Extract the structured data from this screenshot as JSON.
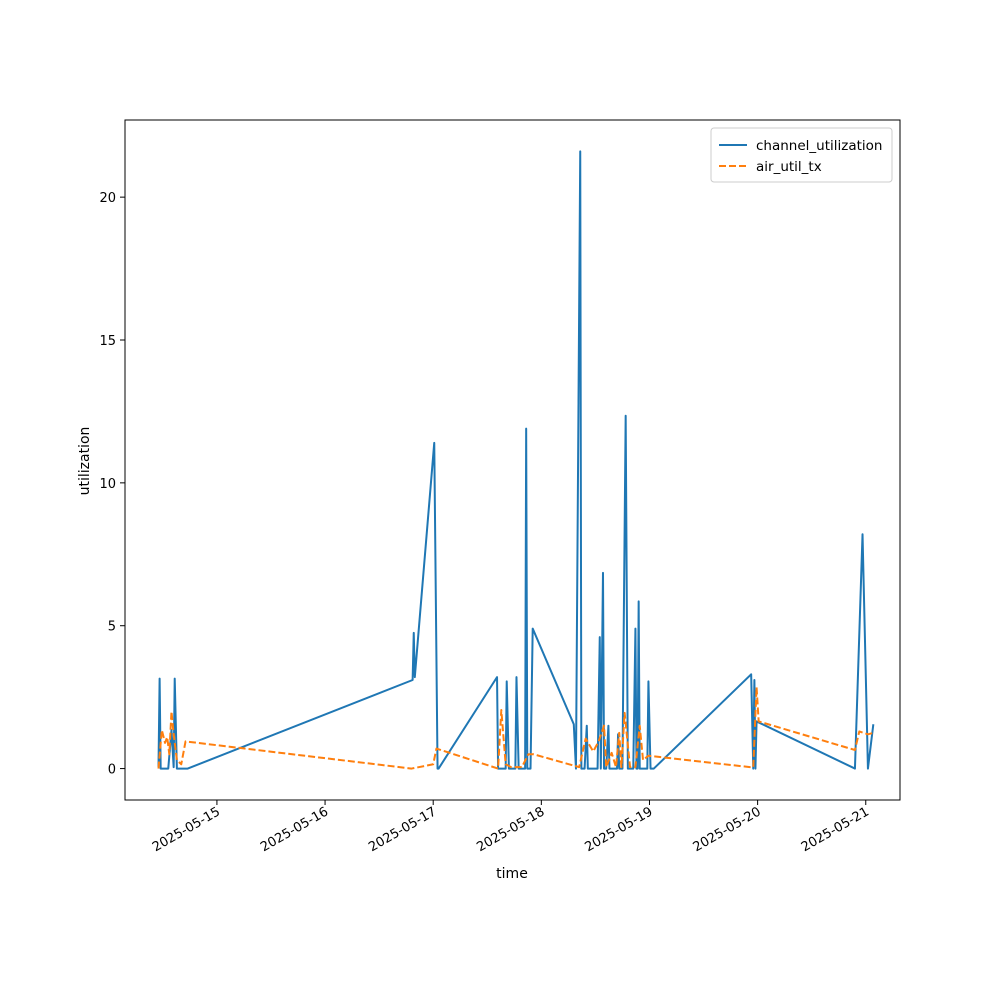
{
  "chart_data": {
    "type": "line",
    "title": "",
    "xlabel": "time",
    "ylabel": "utilization",
    "x_axis_type": "date",
    "xlim": [
      "2025-05-14 03:36",
      "2025-05-21 07:36"
    ],
    "ylim": [
      -1.1,
      22.7
    ],
    "x_ticks": [
      "2025-05-15",
      "2025-05-16",
      "2025-05-17",
      "2025-05-18",
      "2025-05-19",
      "2025-05-20",
      "2025-05-21"
    ],
    "y_ticks": [
      0,
      5,
      10,
      15,
      20
    ],
    "grid": false,
    "legend_position": "top-right",
    "series": [
      {
        "name": "channel_utilization",
        "color": "#1f77b4",
        "style": "solid",
        "points": [
          [
            "2025-05-14 11:02",
            0.05
          ],
          [
            "2025-05-14 11:17",
            3.15
          ],
          [
            "2025-05-14 11:31",
            0.0
          ],
          [
            "2025-05-14 13:12",
            0.0
          ],
          [
            "2025-05-14 13:55",
            1.35
          ],
          [
            "2025-05-14 14:24",
            0.05
          ],
          [
            "2025-05-14 14:38",
            3.15
          ],
          [
            "2025-05-14 15:07",
            0.0
          ],
          [
            "2025-05-14 17:31",
            0.0
          ],
          [
            "2025-05-16 19:26",
            3.1
          ],
          [
            "2025-05-16 19:41",
            4.75
          ],
          [
            "2025-05-16 19:55",
            3.2
          ],
          [
            "2025-05-17 00:14",
            11.4
          ],
          [
            "2025-05-17 00:58",
            0.0
          ],
          [
            "2025-05-17 01:12",
            0.0
          ],
          [
            "2025-05-17 14:10",
            3.2
          ],
          [
            "2025-05-17 14:24",
            0.0
          ],
          [
            "2025-05-17 16:05",
            0.0
          ],
          [
            "2025-05-17 16:19",
            3.05
          ],
          [
            "2025-05-17 16:48",
            0.0
          ],
          [
            "2025-05-17 18:14",
            0.0
          ],
          [
            "2025-05-17 18:29",
            3.2
          ],
          [
            "2025-05-17 18:58",
            0.0
          ],
          [
            "2025-05-17 20:24",
            0.0
          ],
          [
            "2025-05-17 20:38",
            11.9
          ],
          [
            "2025-05-17 20:53",
            0.0
          ],
          [
            "2025-05-17 21:36",
            0.0
          ],
          [
            "2025-05-17 22:05",
            4.9
          ],
          [
            "2025-05-18 07:12",
            1.55
          ],
          [
            "2025-05-18 07:41",
            0.0
          ],
          [
            "2025-05-18 08:38",
            21.6
          ],
          [
            "2025-05-18 08:53",
            0.0
          ],
          [
            "2025-05-18 09:36",
            0.0
          ],
          [
            "2025-05-18 10:05",
            1.5
          ],
          [
            "2025-05-18 10:19",
            0.0
          ],
          [
            "2025-05-18 12:29",
            0.0
          ],
          [
            "2025-05-18 12:58",
            4.6
          ],
          [
            "2025-05-18 13:12",
            0.0
          ],
          [
            "2025-05-18 13:41",
            6.85
          ],
          [
            "2025-05-18 13:55",
            0.0
          ],
          [
            "2025-05-18 14:24",
            0.0
          ],
          [
            "2025-05-18 14:53",
            1.5
          ],
          [
            "2025-05-18 15:07",
            0.0
          ],
          [
            "2025-05-18 16:48",
            0.0
          ],
          [
            "2025-05-18 17:02",
            1.2
          ],
          [
            "2025-05-18 17:17",
            0.0
          ],
          [
            "2025-05-18 18:00",
            0.0
          ],
          [
            "2025-05-18 18:43",
            12.35
          ],
          [
            "2025-05-18 19:12",
            0.0
          ],
          [
            "2025-05-18 20:24",
            0.0
          ],
          [
            "2025-05-18 20:53",
            4.9
          ],
          [
            "2025-05-18 21:07",
            0.0
          ],
          [
            "2025-05-18 21:22",
            0.0
          ],
          [
            "2025-05-18 21:36",
            5.85
          ],
          [
            "2025-05-18 21:50",
            0.0
          ],
          [
            "2025-05-18 23:31",
            0.0
          ],
          [
            "2025-05-18 23:46",
            3.05
          ],
          [
            "2025-05-19 00:14",
            0.0
          ],
          [
            "2025-05-19 00:58",
            0.0
          ],
          [
            "2025-05-19 22:34",
            3.3
          ],
          [
            "2025-05-19 23:02",
            0.0
          ],
          [
            "2025-05-19 23:17",
            3.1
          ],
          [
            "2025-05-19 23:31",
            0.0
          ],
          [
            "2025-05-19 23:46",
            1.65
          ],
          [
            "2025-05-20 21:36",
            0.0
          ],
          [
            "2025-05-20 23:17",
            8.2
          ],
          [
            "2025-05-21 00:29",
            0.0
          ],
          [
            "2025-05-21 01:41",
            1.55
          ]
        ]
      },
      {
        "name": "air_util_tx",
        "color": "#ff7f0e",
        "style": "dashed",
        "points": [
          [
            "2025-05-14 11:02",
            0.0
          ],
          [
            "2025-05-14 11:46",
            1.35
          ],
          [
            "2025-05-14 12:29",
            0.9
          ],
          [
            "2025-05-14 12:58",
            1.1
          ],
          [
            "2025-05-14 13:26",
            0.5
          ],
          [
            "2025-05-14 13:55",
            2.0
          ],
          [
            "2025-05-14 14:24",
            1.2
          ],
          [
            "2025-05-14 15:07",
            0.3
          ],
          [
            "2025-05-14 16:05",
            0.15
          ],
          [
            "2025-05-14 17:02",
            0.95
          ],
          [
            "2025-05-16 19:12",
            0.0
          ],
          [
            "2025-05-17 00:00",
            0.15
          ],
          [
            "2025-05-17 00:43",
            0.7
          ],
          [
            "2025-05-17 14:24",
            0.0
          ],
          [
            "2025-05-17 15:07",
            2.05
          ],
          [
            "2025-05-17 16:05",
            0.15
          ],
          [
            "2025-05-17 17:17",
            0.05
          ],
          [
            "2025-05-17 19:41",
            0.05
          ],
          [
            "2025-05-17 21:07",
            0.5
          ],
          [
            "2025-05-17 22:19",
            0.5
          ],
          [
            "2025-05-18 08:24",
            0.05
          ],
          [
            "2025-05-18 09:50",
            1.05
          ],
          [
            "2025-05-18 11:31",
            0.6
          ],
          [
            "2025-05-18 12:43",
            0.95
          ],
          [
            "2025-05-18 13:55",
            1.5
          ],
          [
            "2025-05-18 14:24",
            0.05
          ],
          [
            "2025-05-18 15:36",
            0.55
          ],
          [
            "2025-05-18 16:34",
            0.05
          ],
          [
            "2025-05-18 17:17",
            1.25
          ],
          [
            "2025-05-18 17:46",
            0.05
          ],
          [
            "2025-05-18 18:29",
            1.95
          ],
          [
            "2025-05-18 19:41",
            0.05
          ],
          [
            "2025-05-18 20:53",
            0.05
          ],
          [
            "2025-05-18 21:50",
            1.5
          ],
          [
            "2025-05-18 22:34",
            0.3
          ],
          [
            "2025-05-18 23:46",
            0.45
          ],
          [
            "2025-05-19 22:19",
            0.05
          ],
          [
            "2025-05-19 23:02",
            0.05
          ],
          [
            "2025-05-19 23:46",
            2.85
          ],
          [
            "2025-05-20 00:14",
            1.65
          ],
          [
            "2025-05-20 21:36",
            0.65
          ],
          [
            "2025-05-20 22:34",
            1.3
          ],
          [
            "2025-05-21 00:29",
            1.2
          ],
          [
            "2025-05-21 01:41",
            1.25
          ]
        ]
      }
    ]
  }
}
